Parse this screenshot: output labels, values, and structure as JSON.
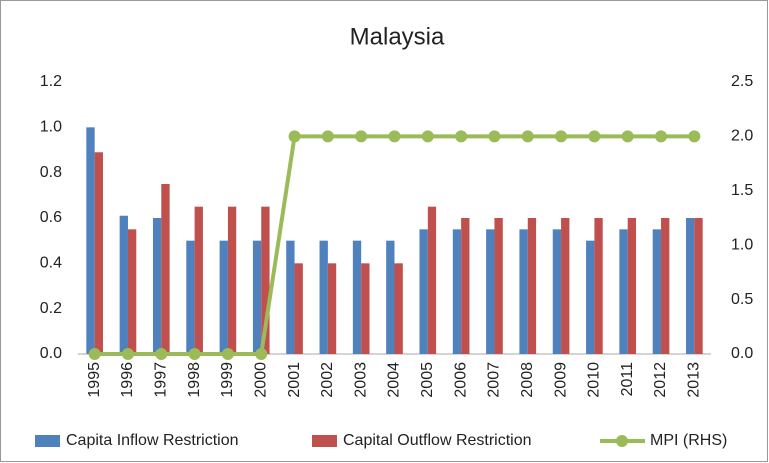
{
  "chart_data": {
    "type": "bar",
    "title": "Malaysia",
    "categories": [
      "1995",
      "1996",
      "1997",
      "1998",
      "1999",
      "2000",
      "2001",
      "2002",
      "2003",
      "2004",
      "2005",
      "2006",
      "2007",
      "2008",
      "2009",
      "2010",
      "2011",
      "2012",
      "2013"
    ],
    "series": [
      {
        "name": "Capita Inflow Restriction",
        "color": "#4f81bd",
        "values": [
          1.0,
          0.61,
          0.6,
          0.5,
          0.5,
          0.5,
          0.5,
          0.5,
          0.5,
          0.5,
          0.55,
          0.55,
          0.55,
          0.55,
          0.55,
          0.5,
          0.55,
          0.55,
          0.6
        ]
      },
      {
        "name": "Capital Outflow Restriction",
        "color": "#c0504d",
        "values": [
          0.89,
          0.55,
          0.75,
          0.65,
          0.65,
          0.65,
          0.4,
          0.4,
          0.4,
          0.4,
          0.65,
          0.6,
          0.6,
          0.6,
          0.6,
          0.6,
          0.6,
          0.6,
          0.6
        ]
      },
      {
        "name": "MPI (RHS)",
        "color": "#9bbb59",
        "type": "line",
        "axis": "y2",
        "values": [
          0,
          0,
          0,
          0,
          0,
          0,
          2,
          2,
          2,
          2,
          2,
          2,
          2,
          2,
          2,
          2,
          2,
          2,
          2
        ]
      }
    ],
    "ylim": [
      0,
      1.2
    ],
    "yticks": [
      {
        "value": 0,
        "label": "0.0"
      },
      0.2,
      0.4,
      0.6,
      0.8,
      {
        "value": 1,
        "label": "1.0"
      },
      1.2
    ],
    "y2lim": [
      0,
      2.5
    ],
    "y2ticks": [
      {
        "value": 0,
        "label": "0.0"
      },
      0.5,
      {
        "value": 1,
        "label": "1.0"
      },
      1.5,
      {
        "value": 2,
        "label": "2.0"
      },
      2.5
    ],
    "grid": false,
    "legend": "bottom"
  }
}
